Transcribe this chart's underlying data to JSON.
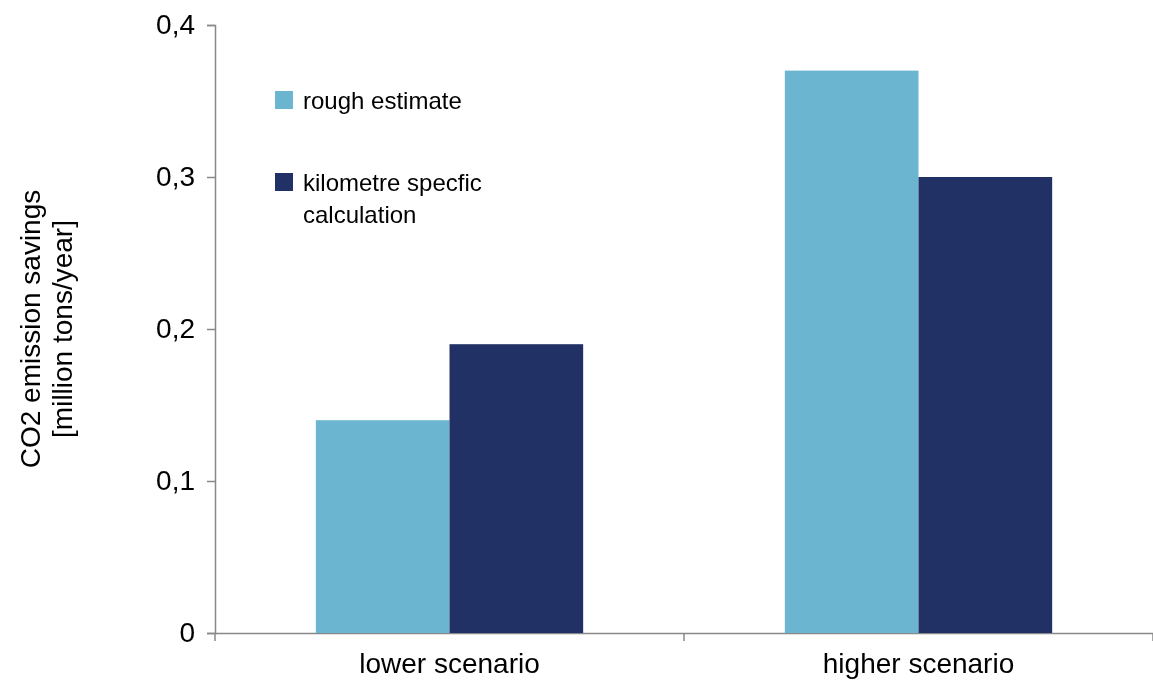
{
  "chart_data": {
    "type": "bar",
    "ylabel": "CO2 emission savings\n[million tons/year]",
    "categories": [
      "lower scenario",
      "higher scenario"
    ],
    "series": [
      {
        "name": "rough estimate",
        "color": "#6bb5d0",
        "values": [
          0.14,
          0.37
        ]
      },
      {
        "name": "kilometre specfic calculation",
        "color": "#223165",
        "values": [
          0.19,
          0.3
        ]
      }
    ],
    "ylim": [
      0,
      0.4
    ],
    "yticks": [
      {
        "value": 0,
        "label": "0"
      },
      {
        "value": 0.1,
        "label": "0,1"
      },
      {
        "value": 0.2,
        "label": "0,2"
      },
      {
        "value": 0.3,
        "label": "0,3"
      },
      {
        "value": 0.4,
        "label": "0,4"
      }
    ],
    "grid": false,
    "legend": "top left"
  }
}
